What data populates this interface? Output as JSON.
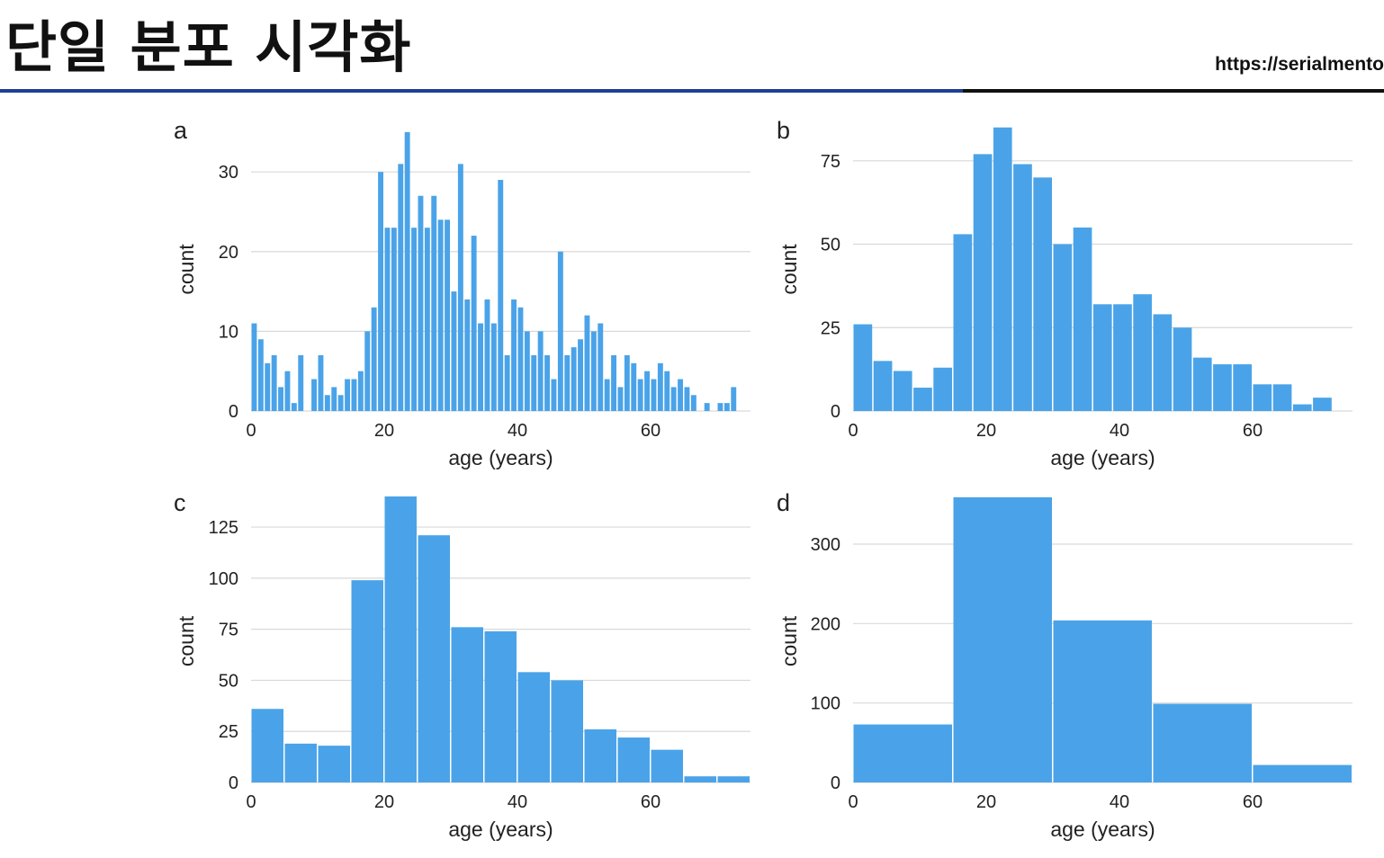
{
  "slide": {
    "title": "단일 분포 시각화",
    "url": "https://serialmento"
  },
  "colors": {
    "bar": "#4aa3e8",
    "grid": "#d9d9d9",
    "title_rule_blue": "#1e3f96",
    "title_rule_black": "#111111"
  },
  "chart_data": [
    {
      "panel": "a",
      "type": "bar",
      "xlabel": "age (years)",
      "ylabel": "count",
      "bin_width": 1,
      "x_start": 0,
      "values": [
        11,
        9,
        6,
        7,
        3,
        5,
        1,
        7,
        0,
        4,
        7,
        2,
        3,
        2,
        4,
        4,
        5,
        10,
        13,
        30,
        23,
        23,
        31,
        35,
        23,
        27,
        23,
        27,
        24,
        24,
        15,
        31,
        14,
        22,
        11,
        14,
        11,
        29,
        7,
        14,
        13,
        10,
        7,
        10,
        7,
        4,
        20,
        7,
        8,
        9,
        12,
        10,
        11,
        4,
        7,
        3,
        7,
        6,
        4,
        5,
        4,
        6,
        5,
        3,
        4,
        3,
        2,
        0,
        1,
        0,
        1,
        1,
        3
      ],
      "xlim": [
        0,
        75
      ],
      "ylim": [
        0,
        36
      ],
      "yticks": [
        0,
        10,
        20,
        30
      ],
      "xticks": [
        0,
        20,
        40,
        60
      ],
      "grid": true
    },
    {
      "panel": "b",
      "type": "bar",
      "xlabel": "age (years)",
      "ylabel": "count",
      "bin_width": 3,
      "x_start": 0,
      "values": [
        26,
        15,
        12,
        7,
        13,
        53,
        77,
        85,
        74,
        70,
        50,
        55,
        32,
        32,
        35,
        29,
        25,
        16,
        14,
        14,
        8,
        8,
        2,
        4
      ],
      "xlim": [
        0,
        75
      ],
      "ylim": [
        0,
        86
      ],
      "yticks": [
        0,
        25,
        50,
        75
      ],
      "xticks": [
        0,
        20,
        40,
        60
      ],
      "grid": true
    },
    {
      "panel": "c",
      "type": "bar",
      "xlabel": "age (years)",
      "ylabel": "count",
      "bin_width": 5,
      "x_start": 0,
      "values": [
        36,
        19,
        18,
        99,
        140,
        121,
        76,
        74,
        54,
        50,
        26,
        22,
        16,
        3,
        3
      ],
      "xlim": [
        0,
        75
      ],
      "ylim": [
        0,
        140
      ],
      "yticks": [
        0,
        25,
        50,
        75,
        100,
        125
      ],
      "xticks": [
        0,
        20,
        40,
        60
      ],
      "grid": true
    },
    {
      "panel": "d",
      "type": "bar",
      "xlabel": "age (years)",
      "ylabel": "count",
      "bin_width": 15,
      "x_start": 0,
      "values": [
        73,
        359,
        204,
        99,
        22
      ],
      "xlim": [
        0,
        75
      ],
      "ylim": [
        0,
        360
      ],
      "yticks": [
        0,
        100,
        200,
        300
      ],
      "xticks": [
        0,
        20,
        40,
        60
      ],
      "grid": true
    }
  ]
}
